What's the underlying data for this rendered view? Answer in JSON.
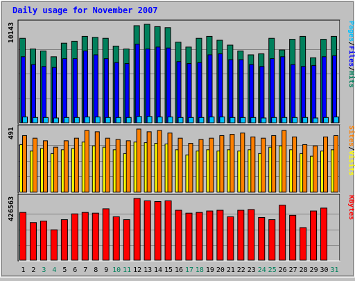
{
  "title": "Daily usage for November 2007",
  "colors": {
    "background": "#C0C0C0",
    "title": "#0000FF",
    "hits": "#00805C",
    "files": "#0000FF",
    "pages": "#00C0FF",
    "visits": "#FFFF00",
    "sites": "#FF8000",
    "kbytes": "#FF0000",
    "weekend_label": "#00805C",
    "weekday_label": "#000000"
  },
  "chart_data": [
    {
      "type": "bar",
      "panel": "hits-files-pages",
      "max_label": "10143",
      "ylim": [
        0,
        10143
      ],
      "legend": [
        {
          "label": "Pages",
          "color": "#00C0FF"
        },
        {
          "label": "/",
          "color": "#000000"
        },
        {
          "label": "Files",
          "color": "#0000FF"
        },
        {
          "label": "/",
          "color": "#000000"
        },
        {
          "label": "Hits",
          "color": "#00805C"
        }
      ],
      "legend_position": "right",
      "categories": [
        "1",
        "2",
        "3",
        "4",
        "5",
        "6",
        "7",
        "8",
        "9",
        "10",
        "11",
        "12",
        "13",
        "14",
        "15",
        "16",
        "17",
        "18",
        "19",
        "20",
        "21",
        "22",
        "23",
        "24",
        "25",
        "26",
        "27",
        "28",
        "29",
        "30",
        "31"
      ],
      "series": [
        {
          "name": "Hits",
          "values": [
            8700,
            7600,
            7400,
            6800,
            8200,
            8400,
            8900,
            8800,
            8700,
            7900,
            7600,
            10000,
            10143,
            9900,
            9800,
            8300,
            7800,
            8700,
            8900,
            8500,
            8000,
            7400,
            7000,
            7100,
            8700,
            7500,
            8600,
            8900,
            6700,
            8600,
            8900
          ]
        },
        {
          "name": "Files",
          "values": [
            6800,
            6000,
            5800,
            5700,
            6600,
            6600,
            7400,
            7000,
            6600,
            6200,
            6100,
            8100,
            7600,
            7800,
            7700,
            6300,
            6100,
            6200,
            7000,
            7100,
            6500,
            6500,
            6000,
            5800,
            6600,
            6800,
            6000,
            5800,
            5900,
            6800,
            6900
          ]
        },
        {
          "name": "Pages",
          "values": [
            600,
            550,
            550,
            500,
            550,
            550,
            600,
            600,
            550,
            550,
            550,
            650,
            650,
            600,
            600,
            550,
            550,
            550,
            600,
            600,
            550,
            550,
            550,
            500,
            550,
            550,
            550,
            550,
            500,
            550,
            600
          ]
        }
      ]
    },
    {
      "type": "bar",
      "panel": "visits-sites",
      "max_label": "491",
      "ylim": [
        0,
        491
      ],
      "legend": [
        {
          "label": "Sites",
          "color": "#FF8000"
        },
        {
          "label": "/",
          "color": "#000000"
        },
        {
          "label": "Visits",
          "color": "#FFFF00"
        }
      ],
      "legend_position": "right",
      "categories": [
        "1",
        "2",
        "3",
        "4",
        "5",
        "6",
        "7",
        "8",
        "9",
        "10",
        "11",
        "12",
        "13",
        "14",
        "15",
        "16",
        "17",
        "18",
        "19",
        "20",
        "21",
        "22",
        "23",
        "24",
        "25",
        "26",
        "27",
        "28",
        "29",
        "30",
        "31"
      ],
      "series": [
        {
          "name": "Visits",
          "values": [
            370,
            320,
            340,
            300,
            330,
            340,
            390,
            360,
            350,
            330,
            300,
            390,
            385,
            380,
            375,
            330,
            290,
            320,
            330,
            320,
            330,
            320,
            330,
            300,
            350,
            360,
            330,
            300,
            280,
            320,
            330
          ]
        },
        {
          "name": "Sites",
          "values": [
            440,
            420,
            400,
            350,
            400,
            420,
            480,
            470,
            420,
            410,
            400,
            491,
            470,
            480,
            460,
            420,
            380,
            410,
            420,
            440,
            450,
            460,
            430,
            420,
            440,
            480,
            430,
            370,
            360,
            430,
            440
          ]
        }
      ]
    },
    {
      "type": "bar",
      "panel": "kbytes",
      "max_label": "426563",
      "ylim": [
        0,
        426563
      ],
      "legend": [
        {
          "label": "KBytes",
          "color": "#FF0000"
        }
      ],
      "legend_position": "right",
      "categories": [
        "1",
        "2",
        "3",
        "4",
        "5",
        "6",
        "7",
        "8",
        "9",
        "10",
        "11",
        "12",
        "13",
        "14",
        "15",
        "16",
        "17",
        "18",
        "19",
        "20",
        "21",
        "22",
        "23",
        "24",
        "25",
        "26",
        "27",
        "28",
        "29",
        "30",
        "31"
      ],
      "series": [
        {
          "name": "KBytes",
          "values": [
            330000,
            260000,
            270000,
            210000,
            280000,
            320000,
            330000,
            325000,
            355000,
            300000,
            280000,
            426563,
            410000,
            405000,
            410000,
            345000,
            325000,
            330000,
            340000,
            345000,
            300000,
            345000,
            350000,
            295000,
            280000,
            380000,
            310000,
            225000,
            340000,
            360000,
            0
          ]
        }
      ]
    }
  ],
  "x_axis": {
    "labels": [
      "1",
      "2",
      "3",
      "4",
      "5",
      "6",
      "7",
      "8",
      "9",
      "10",
      "11",
      "12",
      "13",
      "14",
      "15",
      "16",
      "17",
      "18",
      "19",
      "20",
      "21",
      "22",
      "23",
      "24",
      "25",
      "26",
      "27",
      "28",
      "29",
      "30",
      "31"
    ],
    "weekend": [
      3,
      4,
      10,
      11,
      17,
      18,
      24,
      25,
      31
    ]
  }
}
